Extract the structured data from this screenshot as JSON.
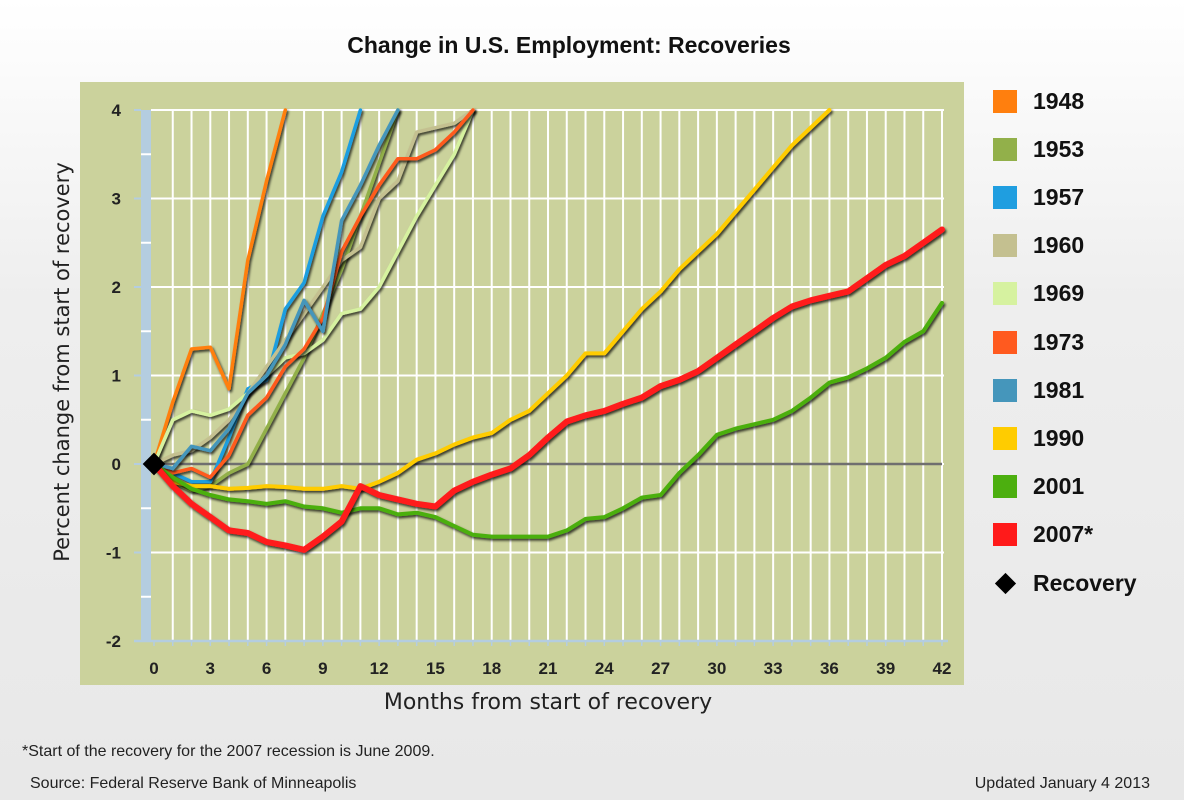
{
  "chart_data": {
    "type": "line",
    "title": "Change in U.S. Employment: Recoveries",
    "xlabel": "Months from start of recovery",
    "ylabel": "Percent change from start of recovery",
    "xlim": [
      0,
      42
    ],
    "ylim": [
      -2,
      4
    ],
    "xticks": [
      0,
      3,
      6,
      9,
      12,
      15,
      18,
      21,
      24,
      27,
      30,
      33,
      36,
      39,
      42
    ],
    "yticks": [
      -2,
      -1,
      0,
      1,
      2,
      3,
      4
    ],
    "grid": true,
    "legend_position": "right",
    "reference_line": 0,
    "recovery_marker": {
      "label": "Recovery",
      "x": 0,
      "y": 0
    },
    "series": [
      {
        "name": "1948",
        "color": "#ff7f0e",
        "values": [
          0,
          0.7,
          1.3,
          1.32,
          0.85,
          2.3,
          3.2,
          4.0
        ]
      },
      {
        "name": "1953",
        "color": "#92b04a",
        "values": [
          0,
          -0.2,
          -0.3,
          -0.25,
          -0.1,
          0.0,
          0.4,
          0.8,
          1.2,
          1.7,
          2.2,
          2.8,
          3.4,
          4.0
        ]
      },
      {
        "name": "1957",
        "color": "#1f9ee0",
        "values": [
          0,
          -0.1,
          -0.2,
          -0.2,
          0.3,
          0.85,
          0.95,
          1.75,
          2.05,
          2.8,
          3.3,
          4.0
        ]
      },
      {
        "name": "1960",
        "color": "#c4c090",
        "values": [
          0,
          0.1,
          0.15,
          0.3,
          0.5,
          0.8,
          1.1,
          1.4,
          1.7,
          2.0,
          2.3,
          2.45,
          3.0,
          3.2,
          3.75,
          3.8,
          3.85,
          4.0
        ]
      },
      {
        "name": "1969",
        "color": "#d6f2a0",
        "values": [
          0,
          0.5,
          0.6,
          0.55,
          0.62,
          0.8,
          1.0,
          1.2,
          1.25,
          1.4,
          1.7,
          1.75,
          2.0,
          2.4,
          2.8,
          3.15,
          3.5,
          4.0
        ]
      },
      {
        "name": "1973",
        "color": "#ff5a1f",
        "values": [
          0,
          -0.1,
          -0.05,
          -0.15,
          0.1,
          0.55,
          0.75,
          1.1,
          1.3,
          1.65,
          2.4,
          2.8,
          3.15,
          3.45,
          3.45,
          3.55,
          3.75,
          4.0
        ]
      },
      {
        "name": "1981",
        "color": "#4596bb",
        "values": [
          0,
          -0.05,
          0.2,
          0.15,
          0.4,
          0.8,
          1.0,
          1.35,
          1.85,
          1.5,
          2.75,
          3.15,
          3.6,
          4.0
        ]
      },
      {
        "name": "1990",
        "color": "#ffcc00",
        "values": [
          0,
          -0.2,
          -0.25,
          -0.25,
          -0.28,
          -0.27,
          -0.25,
          -0.26,
          -0.28,
          -0.28,
          -0.25,
          -0.28,
          -0.2,
          -0.1,
          0.05,
          0.12,
          0.22,
          0.3,
          0.35,
          0.5,
          0.6,
          0.8,
          1.0,
          1.25,
          1.25,
          1.5,
          1.75,
          1.95,
          2.2,
          2.4,
          2.6,
          2.85,
          3.1,
          3.35,
          3.6,
          3.8,
          4.0
        ]
      },
      {
        "name": "2001",
        "color": "#4caf0f",
        "values": [
          0,
          -0.15,
          -0.28,
          -0.35,
          -0.4,
          -0.42,
          -0.45,
          -0.42,
          -0.48,
          -0.5,
          -0.55,
          -0.5,
          -0.5,
          -0.57,
          -0.55,
          -0.6,
          -0.7,
          -0.8,
          -0.82,
          -0.82,
          -0.82,
          -0.82,
          -0.75,
          -0.62,
          -0.6,
          -0.5,
          -0.38,
          -0.35,
          -0.1,
          0.1,
          0.33,
          0.4,
          0.45,
          0.5,
          0.6,
          0.75,
          0.92,
          0.98,
          1.08,
          1.2,
          1.38,
          1.5,
          1.82
        ]
      },
      {
        "name": "2007*",
        "color": "#ff1a1a",
        "values": [
          0,
          -0.25,
          -0.45,
          -0.6,
          -0.75,
          -0.78,
          -0.88,
          -0.92,
          -0.97,
          -0.82,
          -0.65,
          -0.25,
          -0.35,
          -0.4,
          -0.45,
          -0.48,
          -0.3,
          -0.2,
          -0.12,
          -0.05,
          0.1,
          0.3,
          0.48,
          0.55,
          0.6,
          0.68,
          0.75,
          0.88,
          0.95,
          1.05,
          1.2,
          1.35,
          1.5,
          1.65,
          1.78,
          1.85,
          1.9,
          1.95,
          2.1,
          2.25,
          2.35,
          2.5,
          2.65
        ]
      }
    ]
  },
  "legend": {
    "items": [
      {
        "label": "1948",
        "color": "#ff7f0e"
      },
      {
        "label": "1953",
        "color": "#92b04a"
      },
      {
        "label": "1957",
        "color": "#1f9ee0"
      },
      {
        "label": "1960",
        "color": "#c4c090"
      },
      {
        "label": "1969",
        "color": "#d6f2a0"
      },
      {
        "label": "1973",
        "color": "#ff5a1f"
      },
      {
        "label": "1981",
        "color": "#4596bb"
      },
      {
        "label": "1990",
        "color": "#ffcc00"
      },
      {
        "label": "2001",
        "color": "#4caf0f"
      },
      {
        "label": "2007*",
        "color": "#ff1a1a"
      }
    ],
    "recovery_label": "Recovery"
  },
  "footer": {
    "footnote": "*Start of the recovery for the 2007 recession is June 2009.",
    "source": "Source: Federal Reserve Bank of Minneapolis",
    "updated": "Updated January 4 2013"
  },
  "colors": {
    "plot_background": "#cbd29c",
    "grid": "#ffffff",
    "y_axis_band": "#b4cde0",
    "zero_line": "#6f6f6f"
  }
}
